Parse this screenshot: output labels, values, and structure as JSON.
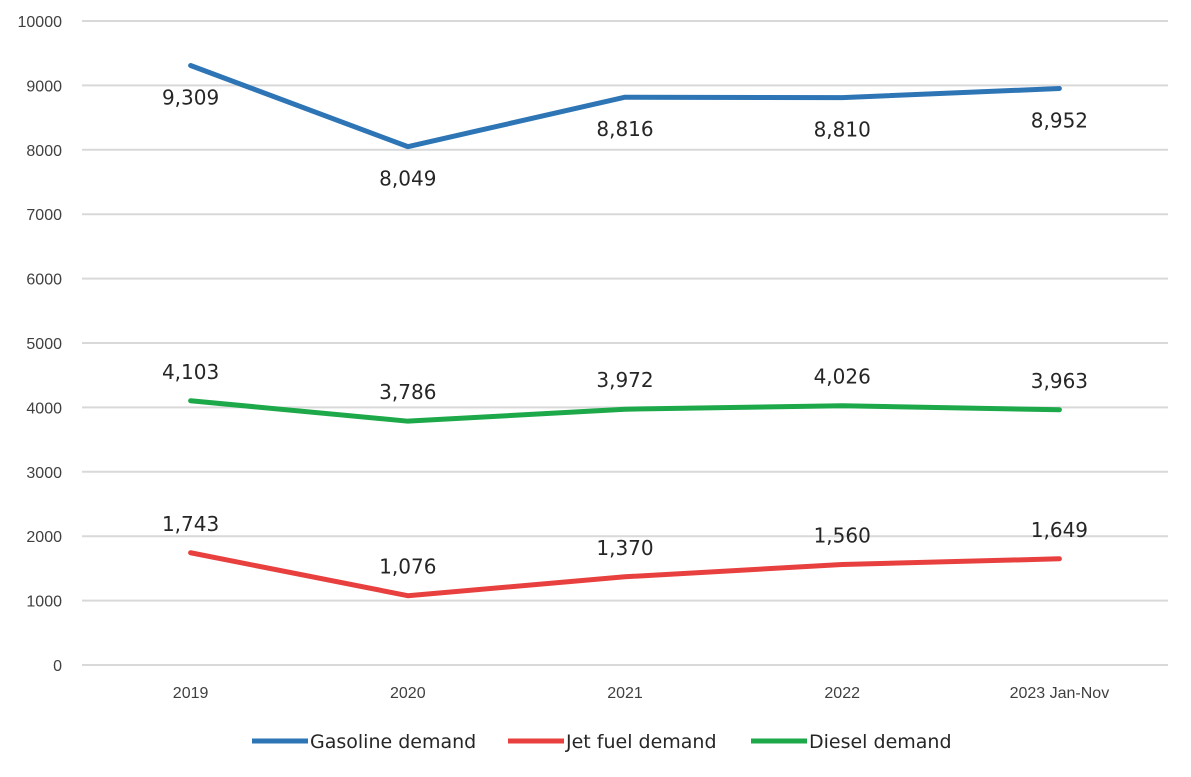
{
  "chart_data": {
    "type": "line",
    "title": "",
    "xlabel": "",
    "ylabel": "",
    "ylim": [
      0,
      10000
    ],
    "yticks": [
      "0",
      "1000",
      "2000",
      "3000",
      "4000",
      "5000",
      "6000",
      "7000",
      "8000",
      "9000",
      "10000"
    ],
    "grid": true,
    "legend_position": "bottom",
    "categories": [
      "2019",
      "2020",
      "2021",
      "2022",
      "2023 Jan-Nov"
    ],
    "series": [
      {
        "name": "Gasoline demand",
        "color": "#2E75B6",
        "values": [
          9309,
          8049,
          8816,
          8810,
          8952
        ],
        "labels": [
          "9,309",
          "8,049",
          "8,816",
          "8,810",
          "8,952"
        ],
        "label_position": "below"
      },
      {
        "name": "Jet fuel demand",
        "color": "#E8403F",
        "values": [
          1743,
          1076,
          1370,
          1560,
          1649
        ],
        "labels": [
          "1,743",
          "1,076",
          "1,370",
          "1,560",
          "1,649"
        ],
        "label_position": "above"
      },
      {
        "name": "Diesel demand",
        "color": "#1DA84A",
        "values": [
          4103,
          3786,
          3972,
          4026,
          3963
        ],
        "labels": [
          "4,103",
          "3,786",
          "3,972",
          "4,026",
          "3,963"
        ],
        "label_position": "above"
      }
    ]
  }
}
